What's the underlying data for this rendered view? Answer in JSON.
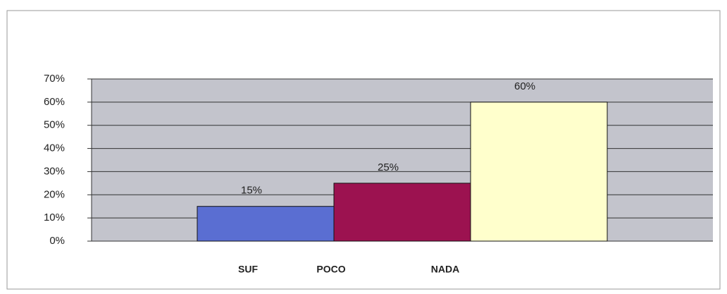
{
  "chart_data": {
    "type": "bar",
    "categories": [
      "SUF",
      "POCO",
      "NADA"
    ],
    "values": [
      15,
      25,
      60
    ],
    "value_labels": [
      "15%",
      "25%",
      "60%"
    ],
    "colors": [
      "#5a6ed2",
      "#9c1250",
      "#ffffcc"
    ],
    "ylim": [
      0,
      70
    ],
    "yticks": [
      {
        "value": 0,
        "label": "0%"
      },
      {
        "value": 10,
        "label": "10%"
      },
      {
        "value": 20,
        "label": "20%"
      },
      {
        "value": 30,
        "label": "30%"
      },
      {
        "value": 40,
        "label": "40%"
      },
      {
        "value": 50,
        "label": "50%"
      },
      {
        "value": 60,
        "label": "60%"
      },
      {
        "value": 70,
        "label": "70%"
      }
    ],
    "grid": true
  }
}
